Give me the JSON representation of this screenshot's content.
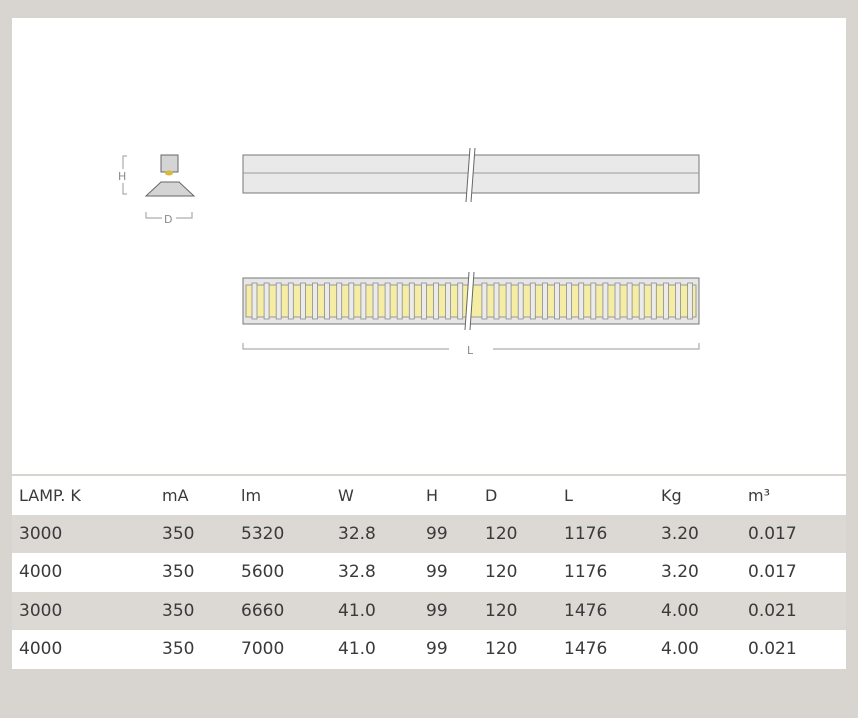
{
  "drawing": {
    "height_label": "H",
    "depth_label": "D",
    "length_label": "L"
  },
  "colors": {
    "background": "#d8d4d0",
    "led_yellow": "#f6eda4",
    "stripe_row": "#dcd8d4"
  },
  "table": {
    "headers": [
      "LAMP. K",
      "mA",
      "lm",
      "W",
      "H",
      "D",
      "L",
      "Kg",
      "m³"
    ],
    "rows": [
      [
        "3000",
        "350",
        "5320",
        "32.8",
        "99",
        "120",
        "1176",
        "3.20",
        "0.017"
      ],
      [
        "4000",
        "350",
        "5600",
        "32.8",
        "99",
        "120",
        "1176",
        "3.20",
        "0.017"
      ],
      [
        "3000",
        "350",
        "6660",
        "41.0",
        "99",
        "120",
        "1476",
        "4.00",
        "0.021"
      ],
      [
        "4000",
        "350",
        "7000",
        "41.0",
        "99",
        "120",
        "1476",
        "4.00",
        "0.021"
      ]
    ]
  }
}
